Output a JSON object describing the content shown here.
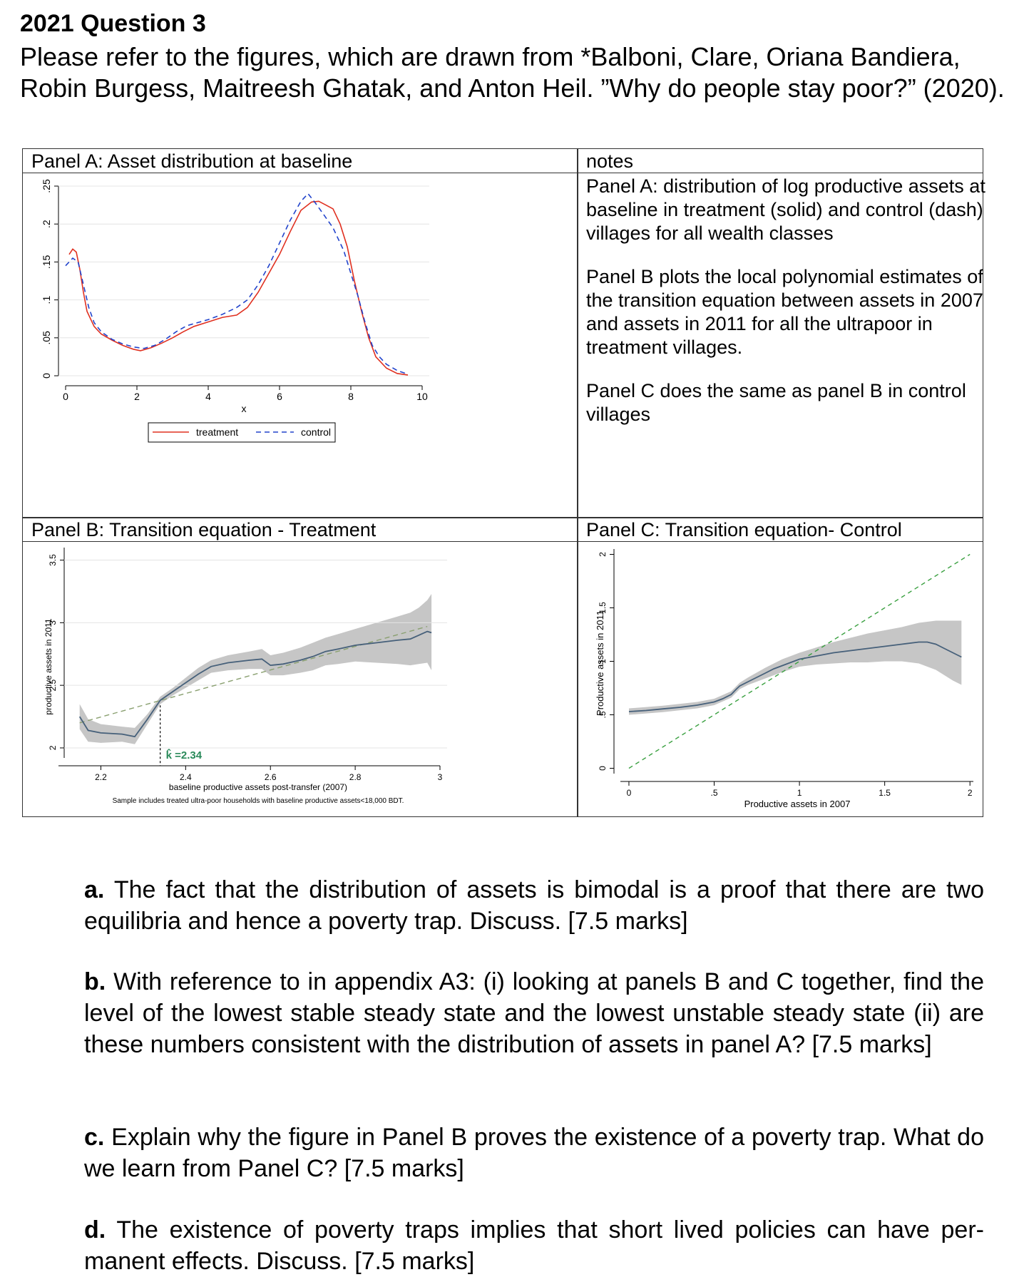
{
  "header": {
    "title": "2021 Question 3",
    "intro": "Please refer to the figures, which are drawn from *Balboni, Clare, Oriana Bandiera, Robin Burgess, Maitreesh Ghatak, and Anton Heil. ”Why do people stay poor?” (2020)."
  },
  "panels": {
    "a_title": "Panel A: Asset distribution at baseline",
    "b_title": "Panel B: Transition equation - Treatment",
    "c_title": "Panel C: Transition equation- Control",
    "notes_title": "notes"
  },
  "notes": {
    "panel_a": "Panel A: distribution of log productive assets at baseline in treatment (solid) and control (dash) villages for all wealth classes",
    "panel_b": "Panel B plots the local polynomial estimates of the transition equation between assets in 2007 and assets in 2011 for all the ultrapoor in treatment villages.",
    "panel_c": "Panel C does the same as panel B in control villages"
  },
  "chart_data": [
    {
      "type": "line",
      "title": "Panel A: Asset distribution at baseline",
      "xlabel": "x",
      "ylabel": "",
      "xlim": [
        0,
        10
      ],
      "ylim": [
        0,
        0.25
      ],
      "x_ticks": [
        "0",
        "2",
        "4",
        "6",
        "8",
        "10"
      ],
      "y_ticks": [
        "0",
        ".05",
        ".1",
        ".15",
        ".2",
        ".25"
      ],
      "legend": "bottom",
      "series": [
        {
          "name": "treatment",
          "color": "#e03020",
          "style": "solid",
          "points": [
            [
              0.1,
              0.16
            ],
            [
              0.2,
              0.167
            ],
            [
              0.3,
              0.163
            ],
            [
              0.4,
              0.14
            ],
            [
              0.5,
              0.11
            ],
            [
              0.6,
              0.085
            ],
            [
              0.8,
              0.065
            ],
            [
              1.0,
              0.055
            ],
            [
              1.3,
              0.047
            ],
            [
              1.6,
              0.04
            ],
            [
              1.9,
              0.035
            ],
            [
              2.1,
              0.033
            ],
            [
              2.4,
              0.037
            ],
            [
              2.7,
              0.043
            ],
            [
              3.0,
              0.05
            ],
            [
              3.3,
              0.058
            ],
            [
              3.6,
              0.065
            ],
            [
              4.0,
              0.071
            ],
            [
              4.4,
              0.077
            ],
            [
              4.8,
              0.08
            ],
            [
              5.1,
              0.09
            ],
            [
              5.4,
              0.11
            ],
            [
              5.7,
              0.135
            ],
            [
              6.0,
              0.16
            ],
            [
              6.3,
              0.19
            ],
            [
              6.6,
              0.218
            ],
            [
              6.9,
              0.229
            ],
            [
              7.1,
              0.23
            ],
            [
              7.3,
              0.225
            ],
            [
              7.5,
              0.22
            ],
            [
              7.7,
              0.2
            ],
            [
              7.9,
              0.17
            ],
            [
              8.1,
              0.125
            ],
            [
              8.3,
              0.085
            ],
            [
              8.5,
              0.05
            ],
            [
              8.7,
              0.025
            ],
            [
              9.0,
              0.01
            ],
            [
              9.3,
              0.003
            ],
            [
              9.6,
              0.001
            ]
          ]
        },
        {
          "name": "control",
          "color": "#2244cc",
          "style": "dash",
          "points": [
            [
              0.0,
              0.145
            ],
            [
              0.2,
              0.155
            ],
            [
              0.35,
              0.15
            ],
            [
              0.5,
              0.12
            ],
            [
              0.65,
              0.09
            ],
            [
              0.8,
              0.07
            ],
            [
              1.0,
              0.058
            ],
            [
              1.3,
              0.048
            ],
            [
              1.6,
              0.042
            ],
            [
              1.9,
              0.038
            ],
            [
              2.2,
              0.036
            ],
            [
              2.5,
              0.04
            ],
            [
              2.8,
              0.048
            ],
            [
              3.1,
              0.058
            ],
            [
              3.4,
              0.066
            ],
            [
              3.7,
              0.07
            ],
            [
              4.0,
              0.074
            ],
            [
              4.4,
              0.081
            ],
            [
              4.8,
              0.09
            ],
            [
              5.1,
              0.1
            ],
            [
              5.4,
              0.12
            ],
            [
              5.7,
              0.145
            ],
            [
              6.0,
              0.175
            ],
            [
              6.3,
              0.205
            ],
            [
              6.6,
              0.23
            ],
            [
              6.8,
              0.24
            ],
            [
              7.0,
              0.228
            ],
            [
              7.2,
              0.215
            ],
            [
              7.5,
              0.195
            ],
            [
              7.8,
              0.165
            ],
            [
              8.0,
              0.135
            ],
            [
              8.2,
              0.105
            ],
            [
              8.4,
              0.07
            ],
            [
              8.6,
              0.04
            ],
            [
              8.8,
              0.025
            ],
            [
              9.0,
              0.015
            ],
            [
              9.3,
              0.007
            ],
            [
              9.6,
              0.002
            ]
          ]
        }
      ]
    },
    {
      "type": "line",
      "title": "Panel B: Transition equation - Treatment",
      "xlabel": "baseline productive assets post-transfer (2007)",
      "ylabel": "productive assets in 2011",
      "note": "Sample includes treated ultra-poor households with baseline productive assets<18,000 BDT.",
      "annotation": "k̂ =2.34",
      "k_hat": 2.34,
      "xlim": [
        2.1,
        3.0
      ],
      "ylim": [
        1.92,
        3.6
      ],
      "x_ticks": [
        "2.2",
        "2.4",
        "2.6",
        "2.8",
        "3"
      ],
      "y_ticks": [
        "2",
        "2.5",
        "3",
        "3.5"
      ],
      "series": [
        {
          "name": "",
          "color": "#46607a",
          "style": "solid",
          "points": [
            [
              2.15,
              2.25
            ],
            [
              2.17,
              2.14
            ],
            [
              2.2,
              2.12
            ],
            [
              2.25,
              2.11
            ],
            [
              2.28,
              2.09
            ],
            [
              2.31,
              2.23
            ],
            [
              2.34,
              2.38
            ],
            [
              2.37,
              2.45
            ],
            [
              2.4,
              2.52
            ],
            [
              2.43,
              2.59
            ],
            [
              2.46,
              2.65
            ],
            [
              2.5,
              2.68
            ],
            [
              2.55,
              2.7
            ],
            [
              2.58,
              2.71
            ],
            [
              2.6,
              2.66
            ],
            [
              2.63,
              2.67
            ],
            [
              2.67,
              2.7
            ],
            [
              2.7,
              2.73
            ],
            [
              2.73,
              2.77
            ],
            [
              2.76,
              2.79
            ],
            [
              2.8,
              2.82
            ],
            [
              2.85,
              2.84
            ],
            [
              2.9,
              2.86
            ],
            [
              2.93,
              2.87
            ],
            [
              2.95,
              2.9
            ],
            [
              2.97,
              2.93
            ],
            [
              2.98,
              2.92
            ]
          ]
        }
      ],
      "ci_band": {
        "upper": [
          [
            2.15,
            2.35
          ],
          [
            2.17,
            2.23
          ],
          [
            2.2,
            2.19
          ],
          [
            2.25,
            2.17
          ],
          [
            2.28,
            2.16
          ],
          [
            2.31,
            2.27
          ],
          [
            2.34,
            2.41
          ],
          [
            2.37,
            2.48
          ],
          [
            2.4,
            2.56
          ],
          [
            2.43,
            2.64
          ],
          [
            2.46,
            2.7
          ],
          [
            2.5,
            2.74
          ],
          [
            2.55,
            2.77
          ],
          [
            2.58,
            2.79
          ],
          [
            2.6,
            2.74
          ],
          [
            2.63,
            2.76
          ],
          [
            2.67,
            2.8
          ],
          [
            2.7,
            2.84
          ],
          [
            2.73,
            2.88
          ],
          [
            2.76,
            2.91
          ],
          [
            2.8,
            2.95
          ],
          [
            2.85,
            3.0
          ],
          [
            2.9,
            3.05
          ],
          [
            2.93,
            3.08
          ],
          [
            2.95,
            3.12
          ],
          [
            2.97,
            3.18
          ],
          [
            2.98,
            3.23
          ]
        ],
        "lower": [
          [
            2.15,
            2.15
          ],
          [
            2.17,
            2.05
          ],
          [
            2.2,
            2.04
          ],
          [
            2.25,
            2.05
          ],
          [
            2.28,
            2.03
          ],
          [
            2.31,
            2.19
          ],
          [
            2.34,
            2.35
          ],
          [
            2.37,
            2.42
          ],
          [
            2.4,
            2.48
          ],
          [
            2.43,
            2.54
          ],
          [
            2.46,
            2.6
          ],
          [
            2.5,
            2.62
          ],
          [
            2.55,
            2.63
          ],
          [
            2.58,
            2.63
          ],
          [
            2.6,
            2.58
          ],
          [
            2.63,
            2.58
          ],
          [
            2.67,
            2.6
          ],
          [
            2.7,
            2.62
          ],
          [
            2.73,
            2.66
          ],
          [
            2.76,
            2.67
          ],
          [
            2.8,
            2.69
          ],
          [
            2.85,
            2.68
          ],
          [
            2.9,
            2.67
          ],
          [
            2.93,
            2.66
          ],
          [
            2.95,
            2.67
          ],
          [
            2.97,
            2.68
          ],
          [
            2.98,
            2.62
          ]
        ]
      },
      "reference_line": [
        [
          2.15,
          2.2
        ],
        [
          2.97,
          2.97
        ]
      ]
    },
    {
      "type": "line",
      "title": "Panel C: Transition equation- Control",
      "xlabel": "Productive assets in 2007",
      "ylabel": "Productive assets in 2011",
      "xlim": [
        -0.05,
        2.02
      ],
      "ylim": [
        -0.05,
        2.05
      ],
      "x_ticks": [
        "0",
        ".5",
        "1",
        "1.5",
        "2"
      ],
      "y_ticks": [
        "0",
        ".5",
        "1",
        "1.5",
        "2"
      ],
      "series": [
        {
          "name": "",
          "color": "#46607a",
          "style": "solid",
          "points": [
            [
              0.0,
              0.53
            ],
            [
              0.1,
              0.54
            ],
            [
              0.2,
              0.555
            ],
            [
              0.3,
              0.57
            ],
            [
              0.4,
              0.59
            ],
            [
              0.5,
              0.62
            ],
            [
              0.55,
              0.65
            ],
            [
              0.6,
              0.69
            ],
            [
              0.63,
              0.74
            ],
            [
              0.65,
              0.77
            ],
            [
              0.7,
              0.81
            ],
            [
              0.75,
              0.85
            ],
            [
              0.8,
              0.89
            ],
            [
              0.85,
              0.93
            ],
            [
              0.9,
              0.96
            ],
            [
              0.95,
              0.99
            ],
            [
              1.0,
              1.02
            ],
            [
              1.1,
              1.05
            ],
            [
              1.2,
              1.08
            ],
            [
              1.3,
              1.1
            ],
            [
              1.4,
              1.12
            ],
            [
              1.5,
              1.14
            ],
            [
              1.6,
              1.16
            ],
            [
              1.7,
              1.18
            ],
            [
              1.75,
              1.18
            ],
            [
              1.8,
              1.16
            ],
            [
              1.85,
              1.12
            ],
            [
              1.9,
              1.08
            ],
            [
              1.95,
              1.04
            ]
          ]
        }
      ],
      "ci_band": {
        "upper": [
          [
            0.0,
            0.56
          ],
          [
            0.2,
            0.585
          ],
          [
            0.4,
            0.62
          ],
          [
            0.5,
            0.65
          ],
          [
            0.6,
            0.72
          ],
          [
            0.65,
            0.8
          ],
          [
            0.7,
            0.85
          ],
          [
            0.8,
            0.94
          ],
          [
            0.9,
            1.02
          ],
          [
            1.0,
            1.08
          ],
          [
            1.1,
            1.13
          ],
          [
            1.2,
            1.18
          ],
          [
            1.3,
            1.22
          ],
          [
            1.4,
            1.26
          ],
          [
            1.5,
            1.29
          ],
          [
            1.6,
            1.32
          ],
          [
            1.7,
            1.36
          ],
          [
            1.8,
            1.38
          ],
          [
            1.9,
            1.38
          ],
          [
            1.95,
            1.38
          ]
        ],
        "lower": [
          [
            0.0,
            0.5
          ],
          [
            0.2,
            0.525
          ],
          [
            0.4,
            0.56
          ],
          [
            0.5,
            0.59
          ],
          [
            0.6,
            0.66
          ],
          [
            0.65,
            0.74
          ],
          [
            0.7,
            0.78
          ],
          [
            0.8,
            0.84
          ],
          [
            0.9,
            0.9
          ],
          [
            1.0,
            0.95
          ],
          [
            1.1,
            0.97
          ],
          [
            1.2,
            0.98
          ],
          [
            1.3,
            0.99
          ],
          [
            1.4,
            0.99
          ],
          [
            1.5,
            1.0
          ],
          [
            1.6,
            1.0
          ],
          [
            1.7,
            0.98
          ],
          [
            1.8,
            0.92
          ],
          [
            1.9,
            0.82
          ],
          [
            1.95,
            0.78
          ]
        ]
      },
      "reference_line": [
        [
          0.0,
          0.0
        ],
        [
          2.0,
          2.0
        ]
      ]
    }
  ],
  "questions": [
    {
      "label": "a.",
      "text": "The fact that the distribution of assets is bimodal is a proof that there are two equilibria and hence a poverty trap. Discuss. [7.5 marks]"
    },
    {
      "label": "b.",
      "text": "With reference to in appendix A3: (i) looking at panels B and C together, find the level of the lowest stable steady state and the lowest unstable steady state (ii) are these numbers consistent with the distribution of assets in panel A? [7.5 marks]"
    },
    {
      "label": "c.",
      "text": "Explain why the figure in Panel B proves the existence of a poverty trap. What do we learn from Panel C? [7.5 marks]"
    },
    {
      "label": "d.",
      "text": "The existence of poverty traps implies that short lived policies can have per- manent effects. Discuss. [7.5 marks]"
    }
  ]
}
